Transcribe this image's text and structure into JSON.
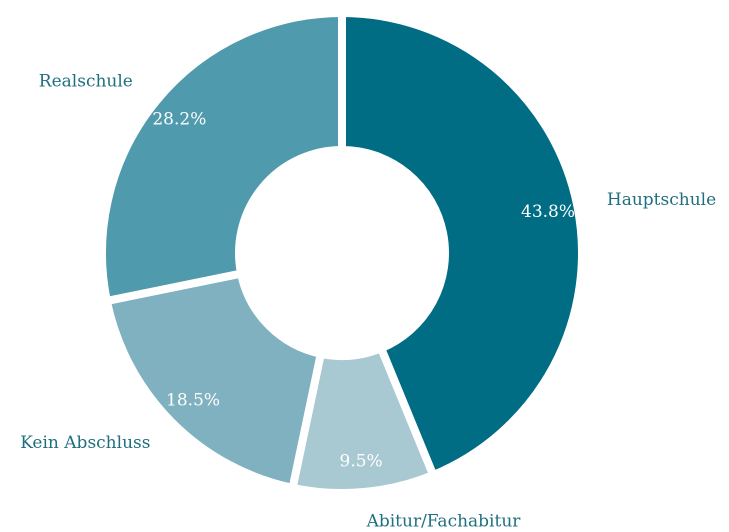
{
  "chart_data": {
    "type": "donut",
    "categories": [
      "Hauptschule",
      "Abitur/Fachabitur",
      "Kein Abschluss",
      "Realschule"
    ],
    "values": [
      43.8,
      9.5,
      18.5,
      28.2
    ],
    "value_labels": [
      "43.8%",
      "9.5%",
      "18.5%",
      "28.2%"
    ],
    "colors": [
      "#006d84",
      "#a8c8d2",
      "#7fb1c0",
      "#4f9aad"
    ]
  }
}
